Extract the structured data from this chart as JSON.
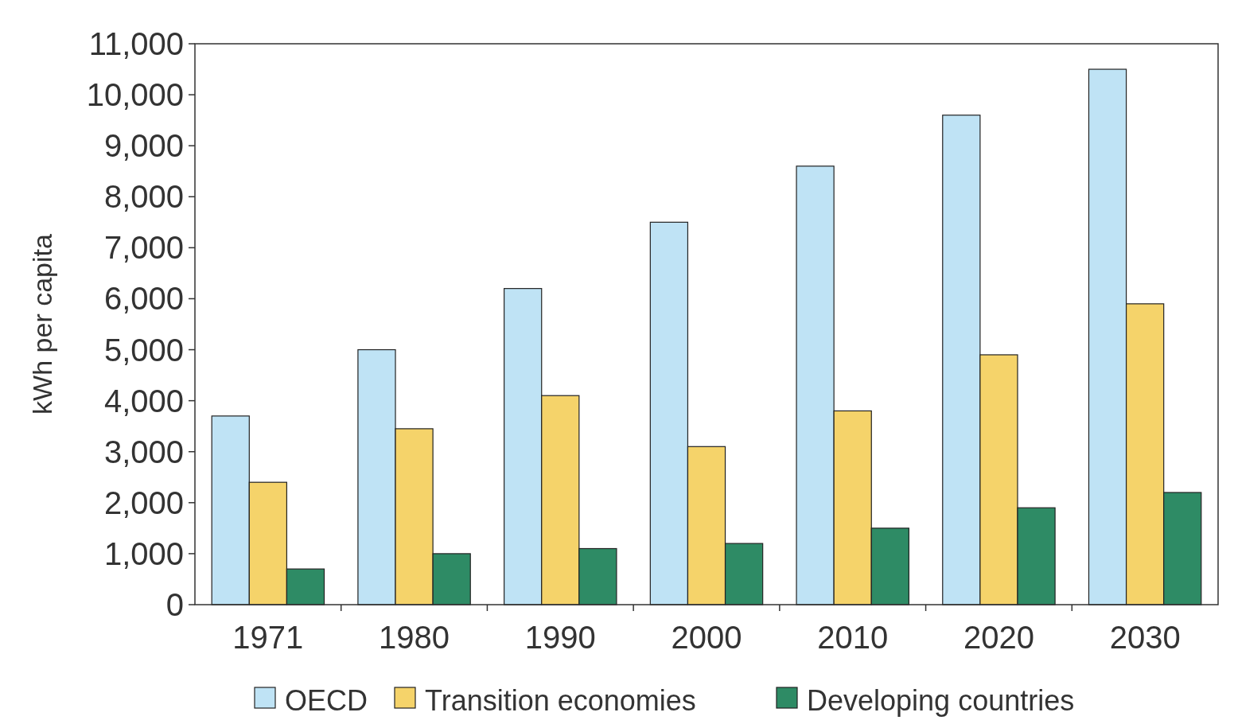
{
  "chart_data": {
    "type": "bar",
    "ylabel": "kWh per capita",
    "categories": [
      "1971",
      "1980",
      "1990",
      "2000",
      "2010",
      "2020",
      "2030"
    ],
    "series": [
      {
        "name": "OECD",
        "color": "#bfe3f5",
        "values": [
          3700,
          5000,
          6200,
          7500,
          8600,
          9600,
          10500
        ]
      },
      {
        "name": "Transition economies",
        "color": "#f5d36a",
        "values": [
          2400,
          3450,
          4100,
          3100,
          3800,
          4900,
          5900
        ]
      },
      {
        "name": "Developing countries",
        "color": "#2e8b65",
        "values": [
          700,
          1000,
          1100,
          1200,
          1500,
          1900,
          2200
        ]
      }
    ],
    "ylim": [
      0,
      11000
    ],
    "yticks": [
      {
        "value": 0,
        "label": "0"
      },
      {
        "value": 1000,
        "label": "1,000"
      },
      {
        "value": 2000,
        "label": "2,000"
      },
      {
        "value": 3000,
        "label": "3,000"
      },
      {
        "value": 4000,
        "label": "4,000"
      },
      {
        "value": 5000,
        "label": "5,000"
      },
      {
        "value": 6000,
        "label": "6,000"
      },
      {
        "value": 7000,
        "label": "7,000"
      },
      {
        "value": 8000,
        "label": "8,000"
      },
      {
        "value": 9000,
        "label": "9,000"
      },
      {
        "value": 10000,
        "label": "10,000"
      },
      {
        "value": 11000,
        "label": "11,000"
      }
    ],
    "grid": false,
    "legend": "bottom"
  }
}
